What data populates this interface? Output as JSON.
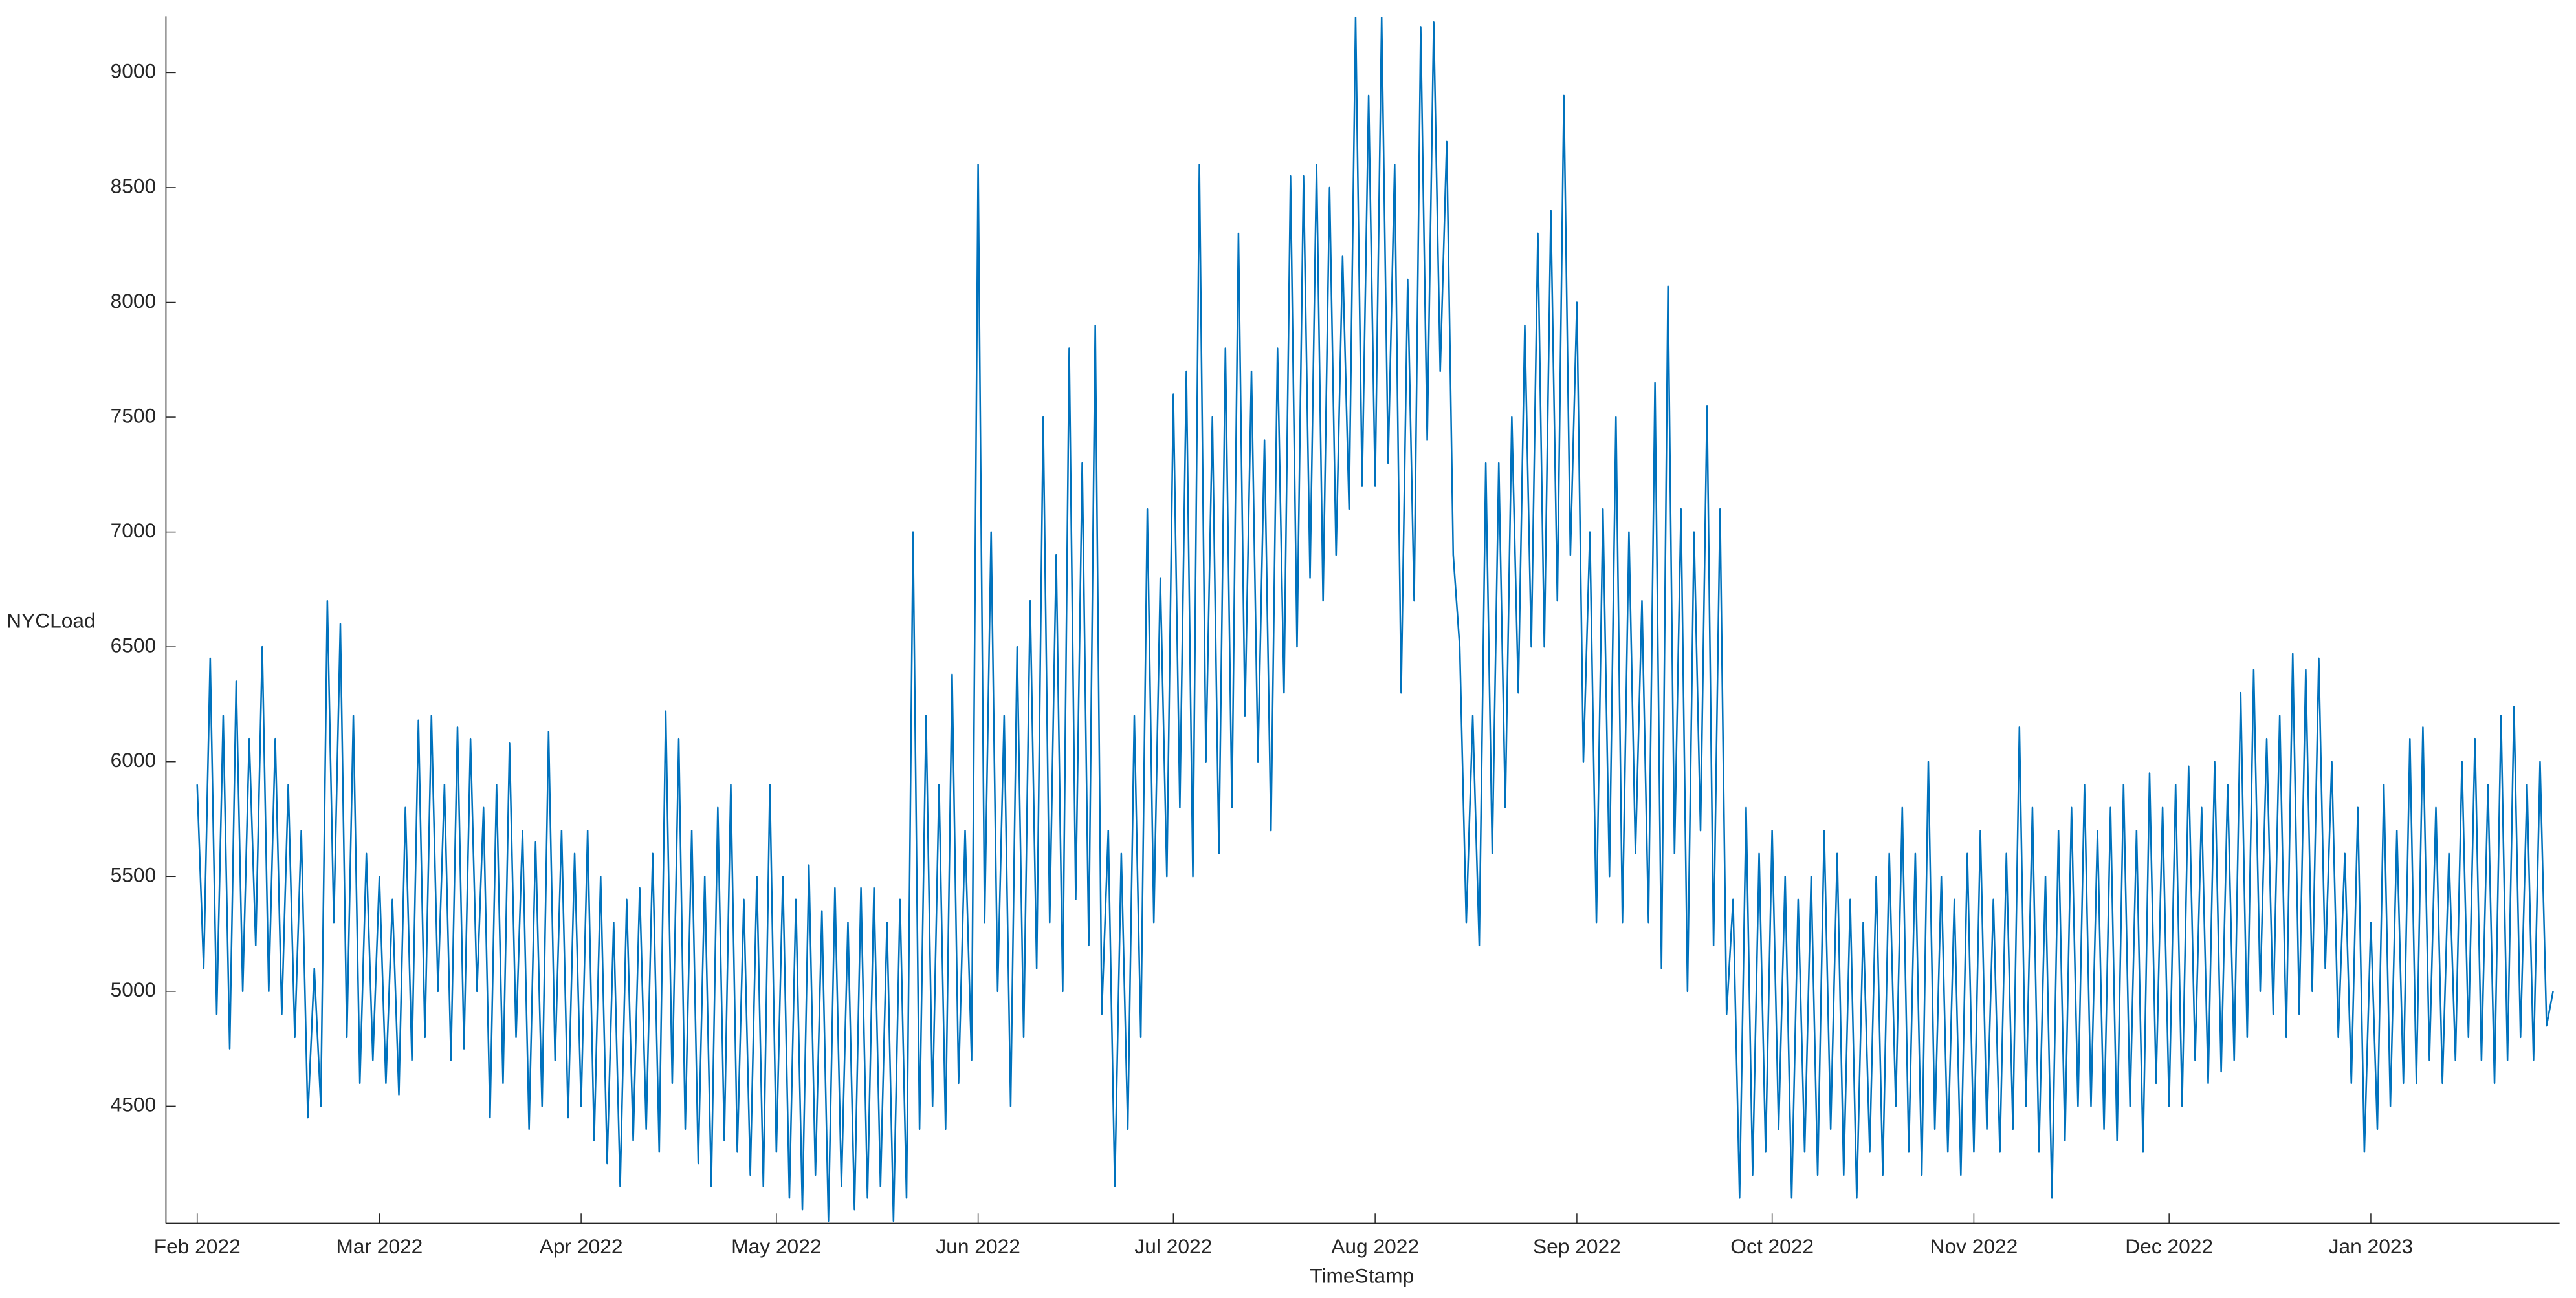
{
  "chart_data": {
    "type": "line",
    "x_label": "TimeStamp",
    "y_label": "NYCLoad",
    "xlim": [
      -4.8,
      363
    ],
    "ylim": [
      3990,
      9245
    ],
    "xticks": [
      {
        "value": 0,
        "label": "Feb 2022"
      },
      {
        "value": 28,
        "label": "Mar 2022"
      },
      {
        "value": 59,
        "label": "Apr 2022"
      },
      {
        "value": 89,
        "label": "May 2022"
      },
      {
        "value": 120,
        "label": "Jun 2022"
      },
      {
        "value": 150,
        "label": "Jul 2022"
      },
      {
        "value": 181,
        "label": "Aug 2022"
      },
      {
        "value": 212,
        "label": "Sep 2022"
      },
      {
        "value": 242,
        "label": "Oct 2022"
      },
      {
        "value": 273,
        "label": "Nov 2022"
      },
      {
        "value": 303,
        "label": "Dec 2022"
      },
      {
        "value": 334,
        "label": "Jan 2023"
      }
    ],
    "yticks": [
      4500,
      5000,
      5500,
      6000,
      6500,
      7000,
      7500,
      8000,
      8500,
      9000
    ],
    "grid": false,
    "series": [
      {
        "name": "NYCLoad",
        "color": "#0072bd",
        "x": [
          0,
          1,
          2,
          3,
          4,
          5,
          6,
          7,
          8,
          9,
          10,
          11,
          12,
          13,
          14,
          15,
          16,
          17,
          18,
          19,
          20,
          21,
          22,
          23,
          24,
          25,
          26,
          27,
          28,
          29,
          30,
          31,
          32,
          33,
          34,
          35,
          36,
          37,
          38,
          39,
          40,
          41,
          42,
          43,
          44,
          45,
          46,
          47,
          48,
          49,
          50,
          51,
          52,
          53,
          54,
          55,
          56,
          57,
          58,
          59,
          60,
          61,
          62,
          63,
          64,
          65,
          66,
          67,
          68,
          69,
          70,
          71,
          72,
          73,
          74,
          75,
          76,
          77,
          78,
          79,
          80,
          81,
          82,
          83,
          84,
          85,
          86,
          87,
          88,
          89,
          90,
          91,
          92,
          93,
          94,
          95,
          96,
          97,
          98,
          99,
          100,
          101,
          102,
          103,
          104,
          105,
          106,
          107,
          108,
          109,
          110,
          111,
          112,
          113,
          114,
          115,
          116,
          117,
          118,
          119,
          120,
          121,
          122,
          123,
          124,
          125,
          126,
          127,
          128,
          129,
          130,
          131,
          132,
          133,
          134,
          135,
          136,
          137,
          138,
          139,
          140,
          141,
          142,
          143,
          144,
          145,
          146,
          147,
          148,
          149,
          150,
          151,
          152,
          153,
          154,
          155,
          156,
          157,
          158,
          159,
          160,
          161,
          162,
          163,
          164,
          165,
          166,
          167,
          168,
          169,
          170,
          171,
          172,
          173,
          174,
          175,
          176,
          177,
          178,
          179,
          180,
          181,
          182,
          183,
          184,
          185,
          186,
          187,
          188,
          189,
          190,
          191,
          192,
          193,
          194,
          195,
          196,
          197,
          198,
          199,
          200,
          201,
          202,
          203,
          204,
          205,
          206,
          207,
          208,
          209,
          210,
          211,
          212,
          213,
          214,
          215,
          216,
          217,
          218,
          219,
          220,
          221,
          222,
          223,
          224,
          225,
          226,
          227,
          228,
          229,
          230,
          231,
          232,
          233,
          234,
          235,
          236,
          237,
          238,
          239,
          240,
          241,
          242,
          243,
          244,
          245,
          246,
          247,
          248,
          249,
          250,
          251,
          252,
          253,
          254,
          255,
          256,
          257,
          258,
          259,
          260,
          261,
          262,
          263,
          264,
          265,
          266,
          267,
          268,
          269,
          270,
          271,
          272,
          273,
          274,
          275,
          276,
          277,
          278,
          279,
          280,
          281,
          282,
          283,
          284,
          285,
          286,
          287,
          288,
          289,
          290,
          291,
          292,
          293,
          294,
          295,
          296,
          297,
          298,
          299,
          300,
          301,
          302,
          303,
          304,
          305,
          306,
          307,
          308,
          309,
          310,
          311,
          312,
          313,
          314,
          315,
          316,
          317,
          318,
          319,
          320,
          321,
          322,
          323,
          324,
          325,
          326,
          327,
          328,
          329,
          330,
          331,
          332,
          333,
          334,
          335,
          336,
          337,
          338,
          339,
          340,
          341,
          342,
          343,
          344,
          345,
          346,
          347,
          348,
          349,
          350,
          351,
          352,
          353,
          354,
          355,
          356,
          357,
          358,
          359,
          360,
          361,
          362
        ],
        "values": [
          5900,
          5100,
          6450,
          4900,
          6200,
          4750,
          6350,
          5000,
          6100,
          5200,
          6500,
          5000,
          6100,
          4900,
          5900,
          4800,
          5700,
          4450,
          5100,
          4500,
          6700,
          5300,
          6600,
          4800,
          6200,
          4600,
          5600,
          4700,
          5500,
          4600,
          5400,
          4550,
          5800,
          4700,
          6180,
          4800,
          6200,
          5000,
          5900,
          4700,
          6150,
          4750,
          6100,
          5000,
          5800,
          4450,
          5900,
          4600,
          6080,
          4800,
          5700,
          4400,
          5650,
          4500,
          6130,
          4700,
          5700,
          4450,
          5600,
          4500,
          5700,
          4350,
          5500,
          4250,
          5300,
          4150,
          5400,
          4350,
          5450,
          4400,
          5600,
          4300,
          6220,
          4600,
          6100,
          4400,
          5700,
          4250,
          5500,
          4150,
          5800,
          4350,
          5900,
          4300,
          5400,
          4200,
          5500,
          4150,
          5900,
          4300,
          5500,
          4100,
          5400,
          4050,
          5550,
          4200,
          5350,
          4000,
          5450,
          4150,
          5300,
          4050,
          5450,
          4100,
          5450,
          4150,
          5300,
          4000,
          5400,
          4100,
          7000,
          4400,
          6200,
          4500,
          5900,
          4400,
          6380,
          4600,
          5700,
          4700,
          8600,
          5300,
          7000,
          5000,
          6200,
          4500,
          6500,
          4800,
          6700,
          5100,
          7500,
          5300,
          6900,
          5000,
          7800,
          5400,
          7300,
          5200,
          7900,
          4900,
          5700,
          4150,
          5600,
          4400,
          6200,
          4800,
          7100,
          5300,
          6800,
          5500,
          7600,
          5800,
          7700,
          5500,
          8600,
          6000,
          7500,
          5600,
          7800,
          5800,
          8300,
          6200,
          7700,
          6000,
          7400,
          5700,
          7800,
          6300,
          8550,
          6500,
          8550,
          6800,
          8600,
          6700,
          8500,
          6900,
          8200,
          7100,
          9240,
          7200,
          8900,
          7200,
          9240,
          7300,
          8600,
          6300,
          8100,
          6700,
          9200,
          7400,
          9220,
          7700,
          8700,
          6900,
          6500,
          5300,
          6200,
          5200,
          7300,
          5600,
          7300,
          5800,
          7500,
          6300,
          7900,
          6500,
          8300,
          6500,
          8400,
          6700,
          8900,
          6900,
          8000,
          6000,
          7000,
          5300,
          7100,
          5500,
          7500,
          5300,
          7000,
          5600,
          6700,
          5300,
          7650,
          5100,
          8070,
          5600,
          7100,
          5000,
          7000,
          5700,
          7550,
          5200,
          7100,
          4900,
          5400,
          4100,
          5800,
          4200,
          5600,
          4300,
          5700,
          4400,
          5500,
          4100,
          5400,
          4300,
          5500,
          4200,
          5700,
          4400,
          5600,
          4200,
          5400,
          4100,
          5300,
          4300,
          5500,
          4200,
          5600,
          4500,
          5800,
          4300,
          5600,
          4200,
          6000,
          4400,
          5500,
          4300,
          5400,
          4200,
          5600,
          4300,
          5700,
          4400,
          5400,
          4300,
          5600,
          4400,
          6150,
          4500,
          5800,
          4300,
          5500,
          4100,
          5700,
          4350,
          5800,
          4500,
          5900,
          4500,
          5700,
          4400,
          5800,
          4350,
          5900,
          4500,
          5700,
          4300,
          5950,
          4600,
          5800,
          4500,
          5900,
          4500,
          5980,
          4700,
          5800,
          4600,
          6000,
          4650,
          5900,
          4700,
          6300,
          4800,
          6400,
          5000,
          6100,
          4900,
          6200,
          4800,
          6470,
          4900,
          6400,
          5000,
          6450,
          5100,
          6000,
          4800,
          5600,
          4600,
          5800,
          4300,
          5300,
          4400,
          5900,
          4500,
          5700,
          4600,
          6100,
          4600,
          6150,
          4700,
          5800,
          4600,
          5600,
          4700,
          6000,
          4800,
          6100,
          4700,
          5900,
          4600,
          6200,
          4700,
          6240,
          4800,
          5900,
          4700,
          6000,
          4850,
          5000
        ]
      }
    ]
  }
}
